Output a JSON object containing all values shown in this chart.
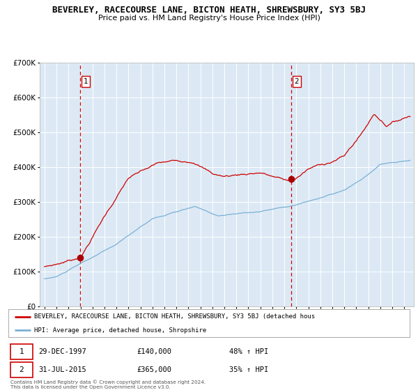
{
  "title": "BEVERLEY, RACECOURSE LANE, BICTON HEATH, SHREWSBURY, SY3 5BJ",
  "subtitle": "Price paid vs. HM Land Registry's House Price Index (HPI)",
  "red_label": "BEVERLEY, RACECOURSE LANE, BICTON HEATH, SHREWSBURY, SY3 5BJ (detached hous",
  "blue_label": "HPI: Average price, detached house, Shropshire",
  "sale1_date": "29-DEC-1997",
  "sale1_price": 140000,
  "sale1_pct": "48% ↑ HPI",
  "sale2_date": "31-JUL-2015",
  "sale2_price": 365000,
  "sale2_pct": "35% ↑ HPI",
  "sale1_x": 1997.99,
  "sale2_x": 2015.58,
  "copyright": "Contains HM Land Registry data © Crown copyright and database right 2024.\nThis data is licensed under the Open Government Licence v3.0.",
  "ylim": [
    0,
    700000
  ],
  "xlim_start": 1994.6,
  "xlim_end": 2025.8,
  "plot_bg": "#dce9f5",
  "grid_color": "#ffffff",
  "red_line_color": "#cc0000",
  "blue_line_color": "#7ab0d4",
  "dashed_line_color": "#cc0000",
  "marker_color": "#aa0000"
}
